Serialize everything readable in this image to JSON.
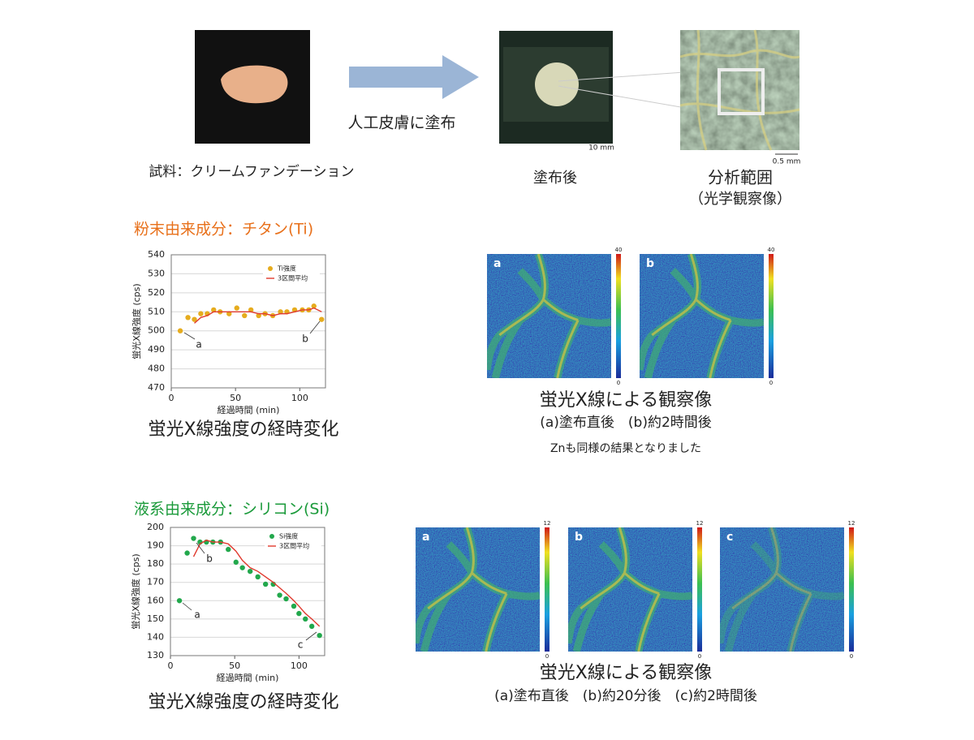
{
  "sample": {
    "label": "試料：クリームファンデーション",
    "step": "人工皮膚に塗布",
    "after": "塗布後",
    "scale1": "10 mm",
    "area": "分析範囲",
    "area_note": "（光学観察像）",
    "scale2": "0.5 mm"
  },
  "sections": [
    {
      "heading": "粉末由来成分：チタン(Ti)",
      "heading_color": "#e8701a",
      "chart_caption": "蛍光X線強度の経時変化",
      "maps_title": "蛍光X線による観察像",
      "maps_caption": "(a)塗布直後　(b)約2時間後",
      "note": "Znも同様の結果となりました",
      "maps": [
        "a",
        "b"
      ],
      "colorbar_ticks": [
        40,
        0
      ]
    },
    {
      "heading": "液系由来成分：シリコン(Si)",
      "heading_color": "#1a9a3a",
      "chart_caption": "蛍光X線強度の経時変化",
      "maps_title": "蛍光X線による観察像",
      "maps_caption": "(a)塗布直後　(b)約20分後　(c)約2時間後",
      "maps": [
        "a",
        "b",
        "c"
      ],
      "colorbar_ticks": [
        12,
        0
      ]
    }
  ],
  "chart_data": [
    {
      "type": "scatter",
      "x_label": "経過時間 (min)",
      "y_label": "蛍光X線強度 (cps)",
      "x": [
        7,
        13,
        18,
        23,
        28,
        33,
        38,
        45,
        51,
        57,
        62,
        68,
        73,
        79,
        85,
        90,
        96,
        102,
        107,
        111,
        117
      ],
      "series": [
        {
          "name": "Ti強度",
          "kind": "points",
          "color": "#e6ac1e",
          "values": [
            500,
            507,
            506,
            509,
            509,
            511,
            510,
            509,
            512,
            508,
            511,
            508,
            509,
            508,
            510,
            510,
            511,
            511,
            511,
            513,
            506
          ]
        },
        {
          "name": "3区間平均",
          "kind": "line",
          "color": "#e03a2e",
          "values": [
            null,
            null,
            504,
            507,
            508,
            510,
            510,
            510,
            510,
            510,
            510,
            509,
            509,
            508,
            509,
            509,
            510,
            511,
            511,
            512,
            510
          ]
        }
      ],
      "xlim": [
        0,
        120
      ],
      "xticks": [
        0,
        50,
        100
      ],
      "ylim": [
        470,
        540
      ],
      "yticks": [
        470,
        480,
        490,
        500,
        510,
        520,
        530,
        540
      ],
      "grid": true,
      "annotations": [
        "a",
        "b"
      ]
    },
    {
      "type": "scatter",
      "x_label": "経過時間 (min)",
      "y_label": "蛍光X線強度 (cps)",
      "x": [
        7,
        13,
        18,
        23,
        28,
        33,
        39,
        45,
        51,
        56,
        62,
        68,
        74,
        80,
        85,
        90,
        96,
        100,
        105,
        110,
        116
      ],
      "series": [
        {
          "name": "Si強度",
          "kind": "points",
          "color": "#22a84c",
          "values": [
            160,
            186,
            194,
            192,
            192,
            192,
            192,
            188,
            181,
            178,
            176,
            173,
            169,
            169,
            163,
            161,
            157,
            153,
            150,
            146,
            141
          ]
        },
        {
          "name": "3区間平均",
          "kind": "line",
          "color": "#e03a2e",
          "values": [
            null,
            null,
            184,
            191,
            193,
            192,
            192,
            191,
            187,
            182,
            178,
            176,
            173,
            170,
            167,
            164,
            160,
            157,
            153,
            150,
            146
          ]
        }
      ],
      "xlim": [
        0,
        120
      ],
      "xticks": [
        0,
        50,
        100
      ],
      "ylim": [
        130,
        200
      ],
      "yticks": [
        130,
        140,
        150,
        160,
        170,
        180,
        190,
        200
      ],
      "grid": true,
      "annotations": [
        "a",
        "b",
        "c"
      ]
    }
  ]
}
